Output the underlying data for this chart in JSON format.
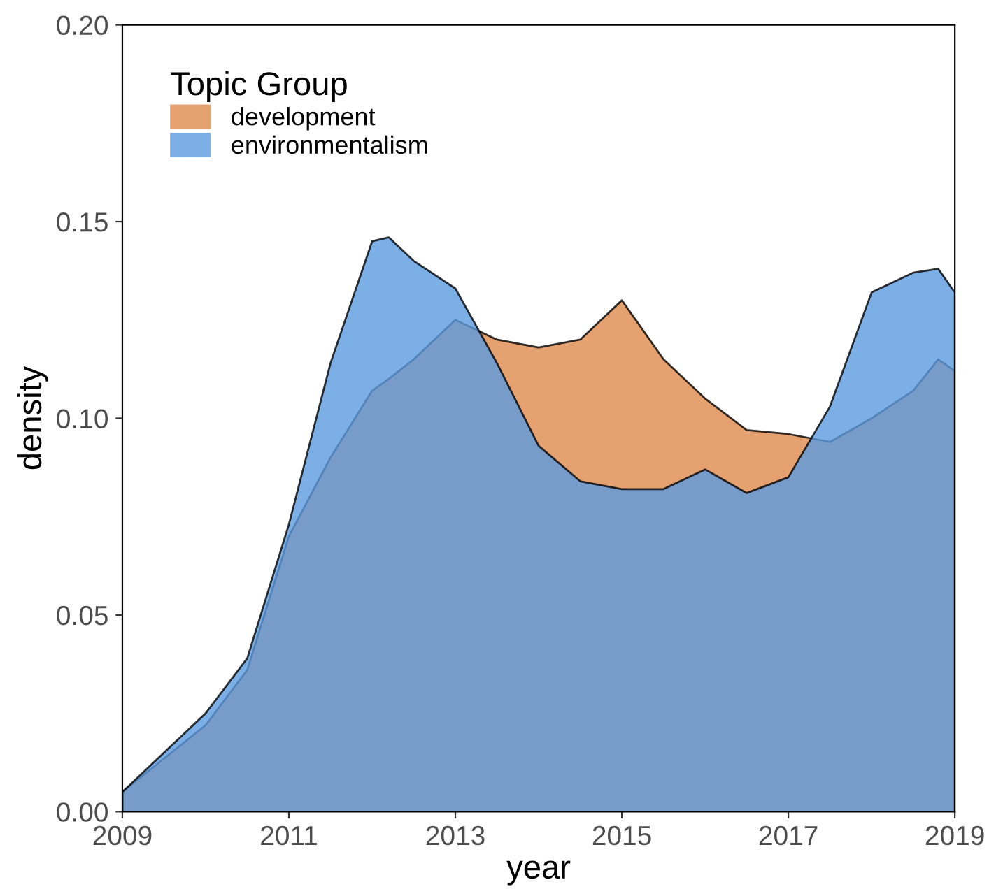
{
  "chart_data": {
    "type": "area",
    "xlabel": "year",
    "ylabel": "density",
    "legend_title": "Topic Group",
    "legend": "top left",
    "grid": false,
    "x": [
      2009,
      2010,
      2010.5,
      2011,
      2011.5,
      2012,
      2012.2,
      2012.5,
      2013,
      2013.5,
      2014,
      2014.5,
      2015,
      2015.5,
      2016,
      2016.5,
      2017,
      2017.5,
      2018,
      2018.5,
      2018.8,
      2019
    ],
    "series": [
      {
        "name": "development",
        "color": "#e08a4c",
        "values": [
          0.005,
          0.022,
          0.036,
          0.07,
          0.09,
          0.107,
          0.11,
          0.115,
          0.125,
          0.12,
          0.118,
          0.12,
          0.13,
          0.115,
          0.105,
          0.097,
          0.096,
          0.094,
          0.1,
          0.107,
          0.115,
          0.112
        ]
      },
      {
        "name": "environmentalism",
        "color": "#5b9be0",
        "values": [
          0.005,
          0.025,
          0.039,
          0.073,
          0.114,
          0.145,
          0.146,
          0.14,
          0.133,
          0.114,
          0.093,
          0.084,
          0.082,
          0.082,
          0.087,
          0.081,
          0.085,
          0.103,
          0.132,
          0.137,
          0.138,
          0.132
        ]
      }
    ],
    "xlim": [
      2009,
      2019
    ],
    "xticks": [
      2009,
      2011,
      2013,
      2015,
      2017,
      2019
    ],
    "ylim": [
      0,
      0.2
    ],
    "yticks": [
      {
        "value": 0,
        "label": "0.00"
      },
      {
        "value": 0.05,
        "label": "0.05"
      },
      {
        "value": 0.1,
        "label": "0.10"
      },
      {
        "value": 0.15,
        "label": "0.15"
      },
      {
        "value": 0.2,
        "label": "0.20"
      }
    ]
  }
}
